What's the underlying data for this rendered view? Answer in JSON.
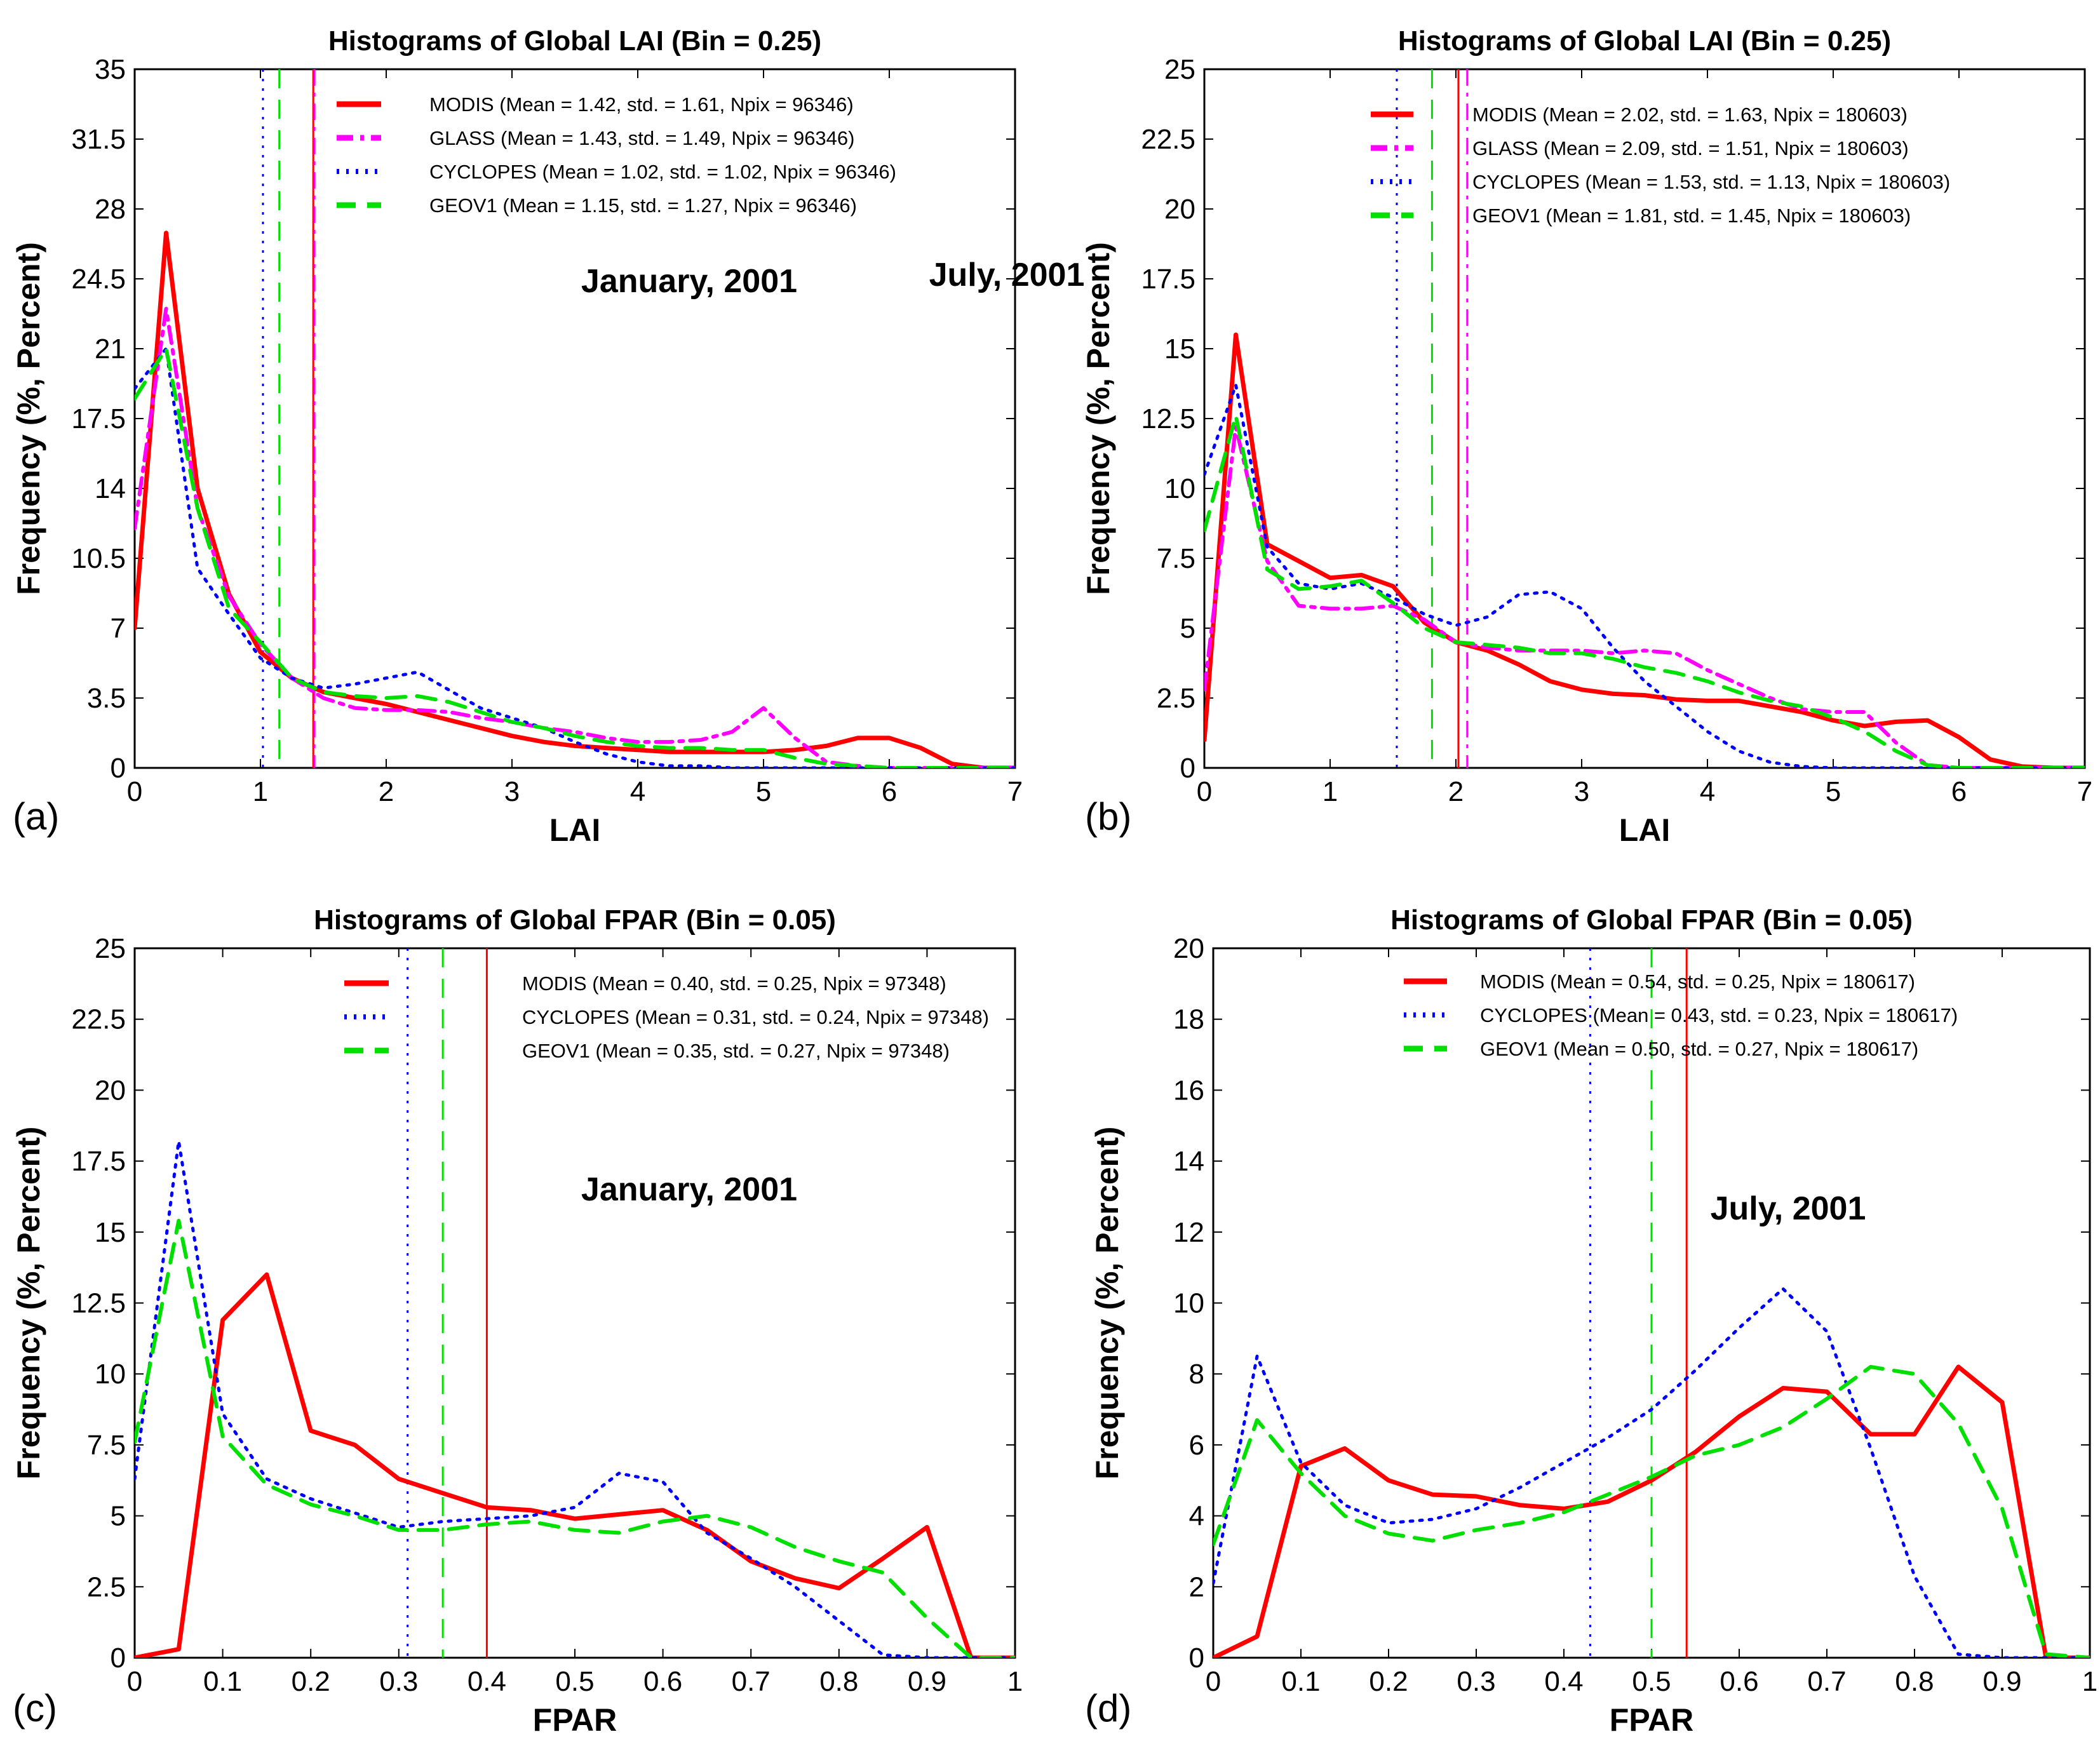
{
  "colors": {
    "MODIS": "#ff0000",
    "GLASS": "#ff00ff",
    "CYCLOPES": "#0000ff",
    "GEOV1": "#00e000"
  },
  "chart_data": [
    {
      "panel": "(a)",
      "type": "line",
      "title": "Histograms of Global LAI (Bin = 0.25)",
      "xlabel": "LAI",
      "ylabel": "Frequency (%, Percent)",
      "annotation": "January, 2001",
      "xlim": [
        0,
        7
      ],
      "ylim": [
        0,
        35
      ],
      "xticks": [
        0,
        1,
        2,
        3,
        4,
        5,
        6,
        7
      ],
      "yticks": [
        0,
        3.5,
        7,
        10.5,
        14,
        17.5,
        21,
        24.5,
        28,
        31.5,
        35
      ],
      "xtick_labels": [
        "0",
        "1",
        "2",
        "3",
        "4",
        "5",
        "6",
        "7"
      ],
      "ytick_labels": [
        "0",
        "3.5",
        "7",
        "10.5",
        "14",
        "17.5",
        "21",
        "24.5",
        "28",
        "31.5",
        "35"
      ],
      "grid": false,
      "legend": [
        "MODIS (Mean = 1.42, std. = 1.61, Npix = 96346)",
        "GLASS (Mean = 1.43, std. = 1.49, Npix = 96346)",
        "CYCLOPES (Mean = 1.02, std. = 1.02, Npix = 96346)",
        "GEOV1 (Mean = 1.15, std. = 1.27, Npix = 96346)"
      ],
      "mean_lines": {
        "MODIS": 1.42,
        "GLASS": 1.43,
        "CYCLOPES": 1.02,
        "GEOV1": 1.15
      },
      "series": [
        {
          "name": "MODIS",
          "x": [
            0,
            0.25,
            0.5,
            0.75,
            1,
            1.25,
            1.5,
            1.75,
            2,
            2.25,
            2.5,
            2.75,
            3,
            3.25,
            3.5,
            3.75,
            4,
            4.25,
            4.5,
            4.75,
            5,
            5.25,
            5.5,
            5.75,
            6,
            6.25,
            6.5,
            6.75,
            7
          ],
          "y": [
            7,
            26.8,
            14,
            8.7,
            5.8,
            4.5,
            3.8,
            3.5,
            3.2,
            2.8,
            2.4,
            2,
            1.6,
            1.3,
            1.1,
            1,
            0.9,
            0.8,
            0.8,
            0.8,
            0.8,
            0.9,
            1.1,
            1.5,
            1.5,
            1,
            0.2,
            0,
            0
          ]
        },
        {
          "name": "GLASS",
          "x": [
            0,
            0.25,
            0.5,
            0.75,
            1,
            1.25,
            1.5,
            1.75,
            2,
            2.25,
            2.5,
            2.75,
            3,
            3.25,
            3.5,
            3.75,
            4,
            4.25,
            4.5,
            4.75,
            5,
            5.25,
            5.5,
            5.75,
            6,
            6.25,
            6.5,
            6.75,
            7
          ],
          "y": [
            12,
            23,
            13,
            8.6,
            6.2,
            4.5,
            3.5,
            3,
            2.9,
            2.9,
            2.8,
            2.5,
            2.3,
            2,
            1.8,
            1.5,
            1.3,
            1.3,
            1.4,
            1.8,
            3,
            1.5,
            0.3,
            0.1,
            0,
            0,
            0,
            0,
            0
          ]
        },
        {
          "name": "CYCLOPES",
          "x": [
            0,
            0.25,
            0.5,
            0.75,
            1,
            1.25,
            1.5,
            1.75,
            2,
            2.25,
            2.5,
            2.75,
            3,
            3.25,
            3.5,
            3.75,
            4,
            4.25,
            4.5,
            4.75,
            5,
            5.25,
            5.5,
            5.75,
            6,
            6.25,
            6.5,
            6.75,
            7
          ],
          "y": [
            19,
            21,
            10,
            7.7,
            5.5,
            4.5,
            4,
            4.2,
            4.5,
            4.8,
            3.9,
            3,
            2.5,
            2,
            1.3,
            0.7,
            0.3,
            0.1,
            0.1,
            0,
            0,
            0,
            0,
            0,
            0,
            0,
            0,
            0,
            0
          ]
        },
        {
          "name": "GEOV1",
          "x": [
            0,
            0.25,
            0.5,
            0.75,
            1,
            1.25,
            1.5,
            1.75,
            2,
            2.25,
            2.5,
            2.75,
            3,
            3.25,
            3.5,
            3.75,
            4,
            4.25,
            4.5,
            4.75,
            5,
            5.25,
            5.5,
            5.75,
            6,
            6.25,
            6.5,
            6.75,
            7
          ],
          "y": [
            18.5,
            21,
            13,
            8,
            6.3,
            4.5,
            3.8,
            3.6,
            3.5,
            3.6,
            3.3,
            2.8,
            2.3,
            2,
            1.6,
            1.3,
            1.1,
            1,
            1,
            0.9,
            0.9,
            0.5,
            0.2,
            0.1,
            0,
            0,
            0,
            0,
            0
          ]
        }
      ]
    },
    {
      "panel": "(b)",
      "type": "line",
      "title": "Histograms of Global LAI (Bin = 0.25)",
      "xlabel": "LAI",
      "ylabel": "Frequency (%, Percent)",
      "annotation": "July, 2001",
      "xlim": [
        0,
        7
      ],
      "ylim": [
        0,
        25
      ],
      "xticks": [
        0,
        1,
        2,
        3,
        4,
        5,
        6,
        7
      ],
      "yticks": [
        0,
        2.5,
        5,
        7.5,
        10,
        12.5,
        15,
        17.5,
        20,
        22.5,
        25
      ],
      "xtick_labels": [
        "0",
        "1",
        "2",
        "3",
        "4",
        "5",
        "6",
        "7"
      ],
      "ytick_labels": [
        "0",
        "2.5",
        "5",
        "7.5",
        "10",
        "12.5",
        "15",
        "17.5",
        "20",
        "22.5",
        "25"
      ],
      "grid": false,
      "legend": [
        "MODIS (Mean = 2.02, std. = 1.63, Npix = 180603)",
        "GLASS (Mean = 2.09, std. = 1.51, Npix = 180603)",
        "CYCLOPES (Mean = 1.53, std. = 1.13, Npix = 180603)",
        "GEOV1 (Mean = 1.81, std. = 1.45, Npix = 180603)"
      ],
      "mean_lines": {
        "MODIS": 2.02,
        "GLASS": 2.09,
        "CYCLOPES": 1.53,
        "GEOV1": 1.81
      },
      "series": [
        {
          "name": "MODIS",
          "x": [
            0,
            0.25,
            0.5,
            0.75,
            1,
            1.25,
            1.5,
            1.75,
            2,
            2.25,
            2.5,
            2.75,
            3,
            3.25,
            3.5,
            3.75,
            4,
            4.25,
            4.5,
            4.75,
            5,
            5.25,
            5.5,
            5.75,
            6,
            6.25,
            6.5,
            6.75,
            7
          ],
          "y": [
            1,
            15.5,
            8,
            7.4,
            6.8,
            6.9,
            6.5,
            5.2,
            4.5,
            4.2,
            3.7,
            3.1,
            2.8,
            2.65,
            2.6,
            2.45,
            2.4,
            2.4,
            2.2,
            2,
            1.7,
            1.5,
            1.65,
            1.7,
            1.1,
            0.3,
            0.05,
            0,
            0
          ]
        },
        {
          "name": "GLASS",
          "x": [
            0,
            0.25,
            0.5,
            0.75,
            1,
            1.25,
            1.5,
            1.75,
            2,
            2.25,
            2.5,
            2.75,
            3,
            3.25,
            3.5,
            3.75,
            4,
            4.25,
            4.5,
            4.75,
            5,
            5.25,
            5.5,
            5.75,
            6,
            6.25,
            6.5,
            6.75,
            7
          ],
          "y": [
            2.8,
            12.2,
            7.4,
            5.8,
            5.7,
            5.7,
            5.8,
            5.3,
            4.5,
            4.3,
            4.2,
            4.2,
            4.2,
            4.1,
            4.2,
            4.1,
            3.5,
            3,
            2.5,
            2.1,
            2,
            2,
            0.9,
            0.1,
            0,
            0,
            0,
            0,
            0
          ]
        },
        {
          "name": "CYCLOPES",
          "x": [
            0,
            0.25,
            0.5,
            0.75,
            1,
            1.25,
            1.5,
            1.75,
            2,
            2.25,
            2.5,
            2.75,
            3,
            3.25,
            3.5,
            3.75,
            4,
            4.25,
            4.5,
            4.75,
            5,
            5.25,
            5.5,
            5.75,
            6,
            6.25,
            6.5,
            6.75,
            7
          ],
          "y": [
            10.5,
            13.7,
            7.9,
            6.6,
            6.4,
            6.6,
            6.1,
            5.5,
            5.1,
            5.4,
            6.2,
            6.3,
            5.7,
            4.3,
            3.1,
            2.2,
            1.3,
            0.6,
            0.2,
            0.05,
            0,
            0,
            0,
            0,
            0,
            0,
            0,
            0,
            0
          ]
        },
        {
          "name": "GEOV1",
          "x": [
            0,
            0.25,
            0.5,
            0.75,
            1,
            1.25,
            1.5,
            1.75,
            2,
            2.25,
            2.5,
            2.75,
            3,
            3.25,
            3.5,
            3.75,
            4,
            4.25,
            4.5,
            4.75,
            5,
            5.25,
            5.5,
            5.75,
            6,
            6.25,
            6.5,
            6.75,
            7
          ],
          "y": [
            8.5,
            12.6,
            7.1,
            6.4,
            6.5,
            6.7,
            5.9,
            5,
            4.5,
            4.4,
            4.3,
            4.1,
            4.1,
            3.9,
            3.6,
            3.4,
            3.1,
            2.7,
            2.4,
            2.2,
            1.8,
            1.3,
            0.6,
            0.1,
            0,
            0,
            0,
            0,
            0
          ]
        }
      ]
    },
    {
      "panel": "(c)",
      "type": "line",
      "title": "Histograms of Global FPAR (Bin = 0.05)",
      "xlabel": "FPAR",
      "ylabel": "Frequency (%, Percent)",
      "annotation": "January, 2001",
      "xlim": [
        0,
        1
      ],
      "ylim": [
        0,
        25
      ],
      "xticks": [
        0,
        0.1,
        0.2,
        0.3,
        0.4,
        0.5,
        0.6,
        0.7,
        0.8,
        0.9,
        1
      ],
      "yticks": [
        0,
        2.5,
        5,
        7.5,
        10,
        12.5,
        15,
        17.5,
        20,
        22.5,
        25
      ],
      "xtick_labels": [
        "0",
        "0.1",
        "0.2",
        "0.3",
        "0.4",
        "0.5",
        "0.6",
        "0.7",
        "0.8",
        "0.9",
        "1"
      ],
      "ytick_labels": [
        "0",
        "2.5",
        "5",
        "7.5",
        "10",
        "12.5",
        "15",
        "17.5",
        "20",
        "22.5",
        "25"
      ],
      "grid": false,
      "legend": [
        "MODIS (Mean = 0.40, std. = 0.25, Npix = 97348)",
        "CYCLOPES (Mean = 0.31, std. = 0.24, Npix = 97348)",
        "GEOV1 (Mean = 0.35, std. = 0.27, Npix = 97348)"
      ],
      "mean_lines": {
        "MODIS": 0.4,
        "CYCLOPES": 0.31,
        "GEOV1": 0.35
      },
      "series": [
        {
          "name": "MODIS",
          "x": [
            0,
            0.05,
            0.1,
            0.15,
            0.2,
            0.25,
            0.3,
            0.35,
            0.4,
            0.45,
            0.5,
            0.55,
            0.6,
            0.65,
            0.7,
            0.75,
            0.8,
            0.85,
            0.9,
            0.95,
            1
          ],
          "y": [
            0,
            0.3,
            11.9,
            13.5,
            8,
            7.5,
            6.3,
            5.8,
            5.3,
            5.2,
            4.9,
            5.05,
            5.2,
            4.5,
            3.4,
            2.8,
            2.45,
            3.5,
            4.6,
            0,
            0
          ]
        },
        {
          "name": "CYCLOPES",
          "x": [
            0,
            0.05,
            0.1,
            0.15,
            0.2,
            0.25,
            0.3,
            0.35,
            0.4,
            0.45,
            0.5,
            0.55,
            0.6,
            0.65,
            0.7,
            0.75,
            0.8,
            0.85,
            0.9,
            0.95,
            1
          ],
          "y": [
            6.3,
            18.2,
            8.6,
            6.3,
            5.6,
            5.1,
            4.6,
            4.8,
            4.9,
            5,
            5.3,
            6.5,
            6.2,
            4.4,
            3.5,
            2.5,
            1.3,
            0.1,
            0,
            0,
            0
          ]
        },
        {
          "name": "GEOV1",
          "x": [
            0,
            0.05,
            0.1,
            0.15,
            0.2,
            0.25,
            0.3,
            0.35,
            0.4,
            0.45,
            0.5,
            0.55,
            0.6,
            0.65,
            0.7,
            0.75,
            0.8,
            0.85,
            0.9,
            0.95,
            1
          ],
          "y": [
            7.6,
            15.4,
            7.8,
            6.1,
            5.4,
            5,
            4.5,
            4.5,
            4.7,
            4.8,
            4.5,
            4.4,
            4.8,
            5,
            4.6,
            3.9,
            3.4,
            3,
            1.4,
            0,
            0
          ]
        }
      ]
    },
    {
      "panel": "(d)",
      "type": "line",
      "title": "Histograms of Global FPAR (Bin = 0.05)",
      "xlabel": "FPAR",
      "ylabel": "Frequency (%, Percent)",
      "annotation": "July, 2001",
      "xlim": [
        0,
        1
      ],
      "ylim": [
        0,
        20
      ],
      "xticks": [
        0,
        0.1,
        0.2,
        0.3,
        0.4,
        0.5,
        0.6,
        0.7,
        0.8,
        0.9,
        1
      ],
      "yticks": [
        0,
        2,
        4,
        6,
        8,
        10,
        12,
        14,
        16,
        18,
        20
      ],
      "xtick_labels": [
        "0",
        "0.1",
        "0.2",
        "0.3",
        "0.4",
        "0.5",
        "0.6",
        "0.7",
        "0.8",
        "0.9",
        "1"
      ],
      "ytick_labels": [
        "0",
        "2",
        "4",
        "6",
        "8",
        "10",
        "12",
        "14",
        "16",
        "18",
        "20"
      ],
      "grid": false,
      "legend": [
        "MODIS (Mean = 0.54, std. = 0.25, Npix = 180617)",
        "CYCLOPES (Mean = 0.43, std. = 0.23, Npix = 180617)",
        "GEOV1 (Mean = 0.50, std. = 0.27, Npix = 180617)"
      ],
      "mean_lines": {
        "MODIS": 0.54,
        "CYCLOPES": 0.43,
        "GEOV1": 0.5
      },
      "series": [
        {
          "name": "MODIS",
          "x": [
            0,
            0.05,
            0.1,
            0.15,
            0.2,
            0.25,
            0.3,
            0.35,
            0.4,
            0.45,
            0.5,
            0.55,
            0.6,
            0.65,
            0.7,
            0.75,
            0.8,
            0.85,
            0.9,
            0.95,
            1
          ],
          "y": [
            0,
            0.6,
            5.4,
            5.9,
            5,
            4.6,
            4.55,
            4.3,
            4.2,
            4.4,
            5,
            5.8,
            6.8,
            7.6,
            7.5,
            6.3,
            6.3,
            8.2,
            7.2,
            0,
            0
          ]
        },
        {
          "name": "CYCLOPES",
          "x": [
            0,
            0.05,
            0.1,
            0.15,
            0.2,
            0.25,
            0.3,
            0.35,
            0.4,
            0.45,
            0.5,
            0.55,
            0.6,
            0.65,
            0.7,
            0.75,
            0.8,
            0.85,
            0.9,
            0.95,
            1
          ],
          "y": [
            2.1,
            8.5,
            5.5,
            4.3,
            3.8,
            3.9,
            4.2,
            4.8,
            5.5,
            6.2,
            7,
            8.1,
            9.3,
            10.4,
            9.2,
            5.9,
            2.3,
            0.1,
            0,
            0,
            0
          ]
        },
        {
          "name": "GEOV1",
          "x": [
            0,
            0.05,
            0.1,
            0.15,
            0.2,
            0.25,
            0.3,
            0.35,
            0.4,
            0.45,
            0.5,
            0.55,
            0.6,
            0.65,
            0.7,
            0.75,
            0.8,
            0.85,
            0.9,
            0.95,
            1
          ],
          "y": [
            3.2,
            6.7,
            5.2,
            4,
            3.5,
            3.3,
            3.6,
            3.8,
            4.1,
            4.6,
            5.1,
            5.7,
            6,
            6.5,
            7.3,
            8.2,
            8,
            6.6,
            4.2,
            0.1,
            0
          ]
        }
      ]
    }
  ]
}
